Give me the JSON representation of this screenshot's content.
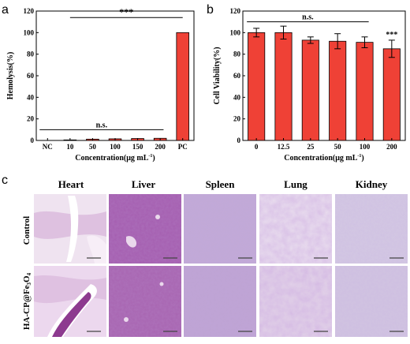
{
  "figure": {
    "panel_a_letter": "a",
    "panel_b_letter": "b",
    "panel_c_letter": "c"
  },
  "chart_data": [
    {
      "type": "bar",
      "panel": "a",
      "ylabel": "Hemolysis(%)",
      "xlabel_prefix": "Concentration(μg mL",
      "xlabel_sup": "-1",
      "xlabel_suffix": ")",
      "categories": [
        "NC",
        "10",
        "50",
        "100",
        "150",
        "200",
        "PC"
      ],
      "values": [
        0,
        0.5,
        1.2,
        1.5,
        1.8,
        2.0,
        100
      ],
      "yticks": [
        "0",
        "20",
        "40",
        "60",
        "80",
        "100",
        "120"
      ],
      "ylim": [
        0,
        120
      ],
      "bar_color": "#ef4136",
      "annotations": [
        {
          "label": "***",
          "from": "10",
          "to": "PC",
          "y": 114
        },
        {
          "label": "n.s.",
          "from": "NC",
          "to": "200",
          "y": 10
        }
      ]
    },
    {
      "type": "bar",
      "panel": "b",
      "ylabel": "Cell Viability(%)",
      "xlabel": "Concentration(μg mL",
      "xlabel_sup": "-1",
      "xlabel_suffix": ")",
      "categories": [
        "0",
        "12.5",
        "25",
        "50",
        "100",
        "200"
      ],
      "values": [
        100,
        100,
        93,
        92,
        91,
        85
      ],
      "errors": [
        4,
        6,
        3,
        7,
        5,
        8
      ],
      "yticks": [
        "0",
        "20",
        "40",
        "60",
        "80",
        "100",
        "120"
      ],
      "ylim": [
        0,
        120
      ],
      "bar_color": "#ef4136",
      "annotations": [
        {
          "label": "n.s.",
          "from": "0",
          "to": "100",
          "y": 110
        },
        {
          "label": "***",
          "over": "200",
          "y": 96
        }
      ]
    }
  ],
  "histology": {
    "columns": [
      "Heart",
      "Liver",
      "Spleen",
      "Lung",
      "Kidney"
    ],
    "row_control": "Control",
    "row_treated_main": "HA-CP@Fe",
    "row_treated_sub1": "3",
    "row_treated_mid": "O",
    "row_treated_sub2": "4"
  }
}
